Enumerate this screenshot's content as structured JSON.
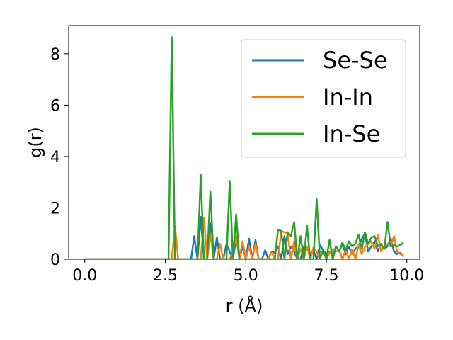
{
  "chart_data": {
    "type": "line",
    "xlabel": "r (Å)",
    "ylabel": "g(r)",
    "xlim": [
      -0.5,
      10.4
    ],
    "ylim": [
      0,
      9.1
    ],
    "xticks": [
      0.0,
      2.5,
      5.0,
      7.5,
      10.0
    ],
    "xtick_labels": [
      "0.0",
      "2.5",
      "5.0",
      "7.5",
      "10.0"
    ],
    "yticks": [
      0,
      2,
      4,
      6,
      8
    ],
    "ytick_labels": [
      "0",
      "2",
      "4",
      "6",
      "8"
    ],
    "grid": false,
    "legend_position": "top-right",
    "series": [
      {
        "name": "Se-Se",
        "color": "#1f77b4",
        "x": [
          0.0,
          3.3,
          3.4,
          3.5,
          3.6,
          3.7,
          3.8,
          3.9,
          4.0,
          4.1,
          4.2,
          4.3,
          4.4,
          4.5,
          4.6,
          4.7,
          4.8,
          4.9,
          5.0,
          5.1,
          5.2,
          5.3,
          5.4,
          5.5,
          5.6,
          5.7,
          5.8,
          5.9,
          6.0,
          6.1,
          6.2,
          6.3,
          6.4,
          6.5,
          6.6,
          6.7,
          6.8,
          6.9,
          7.0,
          7.1,
          7.2,
          7.3,
          7.4,
          7.5,
          7.6,
          7.7,
          7.8,
          7.9,
          8.0,
          8.1,
          8.2,
          8.3,
          8.4,
          8.5,
          8.6,
          8.7,
          8.8,
          8.9,
          9.0,
          9.1,
          9.2,
          9.3,
          9.4,
          9.5,
          9.6,
          9.7,
          9.8,
          9.9
        ],
        "y": [
          0,
          0,
          0.9,
          0,
          1.65,
          0,
          0,
          1.4,
          0,
          0.85,
          0,
          0,
          0.6,
          0.3,
          0,
          0.85,
          0,
          0.5,
          0,
          0.8,
          0,
          0.75,
          0,
          0,
          0.35,
          0,
          0.3,
          0.25,
          0.5,
          0,
          0.9,
          0.2,
          0.5,
          0.3,
          0,
          0,
          0.5,
          0.4,
          0.2,
          0.35,
          0,
          0.55,
          0.35,
          0.2,
          0.3,
          0.15,
          0.5,
          0.3,
          0.6,
          0.2,
          0.5,
          0.2,
          0.4,
          0.5,
          0.8,
          1.0,
          0.3,
          0.5,
          0.7,
          0.3,
          0.6,
          0.4,
          0.5,
          0.8,
          0.3,
          0.2,
          0.25,
          0.1
        ]
      },
      {
        "name": "In-In",
        "color": "#ff7f0e",
        "x": [
          0.0,
          2.6,
          2.7,
          2.8,
          2.9,
          3.0,
          3.1,
          3.2,
          3.3,
          3.4,
          3.5,
          3.6,
          3.7,
          3.8,
          3.9,
          4.0,
          4.1,
          4.2,
          4.3,
          4.4,
          4.5,
          4.6,
          4.7,
          4.8,
          4.9,
          5.0,
          5.1,
          5.2,
          5.3,
          5.4,
          5.5,
          5.6,
          5.7,
          5.8,
          5.9,
          6.0,
          6.1,
          6.2,
          6.3,
          6.4,
          6.5,
          6.6,
          6.7,
          6.8,
          6.9,
          7.0,
          7.1,
          7.2,
          7.3,
          7.4,
          7.5,
          7.6,
          7.7,
          7.8,
          7.9,
          8.0,
          8.1,
          8.2,
          8.3,
          8.4,
          8.5,
          8.6,
          8.7,
          8.8,
          8.9,
          9.0,
          9.1,
          9.2,
          9.3,
          9.4,
          9.5,
          9.6,
          9.7,
          9.8,
          9.9
        ],
        "y": [
          0,
          0,
          0,
          1.3,
          0,
          0,
          0,
          0,
          0,
          0,
          0,
          0,
          1.6,
          0,
          1.0,
          0,
          0,
          0.6,
          0,
          0,
          0,
          0.3,
          0.9,
          0,
          0.7,
          0,
          0.5,
          0,
          0.6,
          0,
          0,
          0,
          0,
          0.3,
          0,
          0,
          1.1,
          1.05,
          1.0,
          0,
          0.7,
          0,
          0.4,
          0,
          0.5,
          0,
          0.45,
          0.3,
          0,
          0.35,
          0,
          0.25,
          0.4,
          0.3,
          0.35,
          0,
          0.35,
          0,
          0.4,
          0,
          0.55,
          0.2,
          0.5,
          0.6,
          0.7,
          0.4,
          0.95,
          0.3,
          0.5,
          0.6,
          0.5,
          0.9,
          0.3,
          0.2,
          0.15
        ]
      },
      {
        "name": "In-Se",
        "color": "#2ca02c",
        "x": [
          0.0,
          2.6,
          2.7,
          2.8,
          2.9,
          3.0,
          3.1,
          3.2,
          3.3,
          3.4,
          3.5,
          3.6,
          3.7,
          3.8,
          3.9,
          4.0,
          4.1,
          4.2,
          4.3,
          4.4,
          4.5,
          4.6,
          4.7,
          4.8,
          4.9,
          5.0,
          5.1,
          5.2,
          5.3,
          5.4,
          5.5,
          5.6,
          5.7,
          5.8,
          5.9,
          6.0,
          6.1,
          6.2,
          6.3,
          6.4,
          6.5,
          6.6,
          6.7,
          6.8,
          6.9,
          7.0,
          7.1,
          7.2,
          7.3,
          7.4,
          7.5,
          7.6,
          7.7,
          7.8,
          7.9,
          8.0,
          8.1,
          8.2,
          8.3,
          8.4,
          8.5,
          8.6,
          8.7,
          8.8,
          8.9,
          9.0,
          9.1,
          9.2,
          9.3,
          9.4,
          9.5,
          9.6,
          9.7,
          9.8,
          9.9
        ],
        "y": [
          0,
          0,
          8.65,
          0,
          0,
          0,
          0,
          0,
          0,
          0,
          0,
          3.3,
          0,
          0,
          2.65,
          0,
          0,
          0,
          0,
          0,
          3.05,
          0,
          1.75,
          0,
          0,
          0,
          0,
          0,
          0,
          0,
          0,
          0,
          0,
          0,
          0,
          1.15,
          1.1,
          0,
          1.05,
          0.9,
          1.45,
          0,
          0.9,
          0,
          1.3,
          0,
          0,
          2.35,
          0,
          0.4,
          0,
          0.75,
          0,
          0.5,
          0.3,
          0.65,
          0.35,
          0.7,
          0.5,
          0.6,
          0.95,
          0.4,
          1.05,
          0.6,
          0.85,
          0.9,
          0.5,
          0.6,
          0.4,
          1.45,
          0.5,
          0.55,
          0.5,
          0.55,
          0.65
        ]
      }
    ]
  }
}
